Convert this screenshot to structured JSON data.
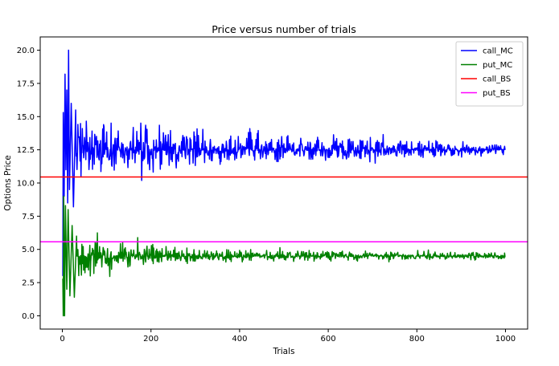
{
  "chart_data": {
    "type": "line",
    "title": "Price versus number of trials",
    "xlabel": "Trials",
    "ylabel": "Options Price",
    "xlim": [
      -50,
      1050
    ],
    "ylim": [
      -1.0,
      21.0
    ],
    "xticks": [
      0,
      200,
      400,
      600,
      800,
      1000
    ],
    "yticks": [
      0.0,
      2.5,
      5.0,
      7.5,
      10.0,
      12.5,
      15.0,
      17.5,
      20.0
    ],
    "xtick_labels": [
      "0",
      "200",
      "400",
      "600",
      "800",
      "1000"
    ],
    "ytick_labels": [
      "0.0",
      "2.5",
      "5.0",
      "7.5",
      "10.0",
      "12.5",
      "15.0",
      "17.5",
      "20.0"
    ],
    "grid": false,
    "legend_position": "top-right",
    "series": [
      {
        "name": "call_MC",
        "kind": "monte-carlo",
        "color": "#0000ff",
        "x_range": [
          1,
          1000
        ],
        "converges_to": 12.5,
        "keypoints": [
          {
            "x": 1,
            "y": 3.0
          },
          {
            "x": 2,
            "y": 15.3
          },
          {
            "x": 4,
            "y": 9.0
          },
          {
            "x": 6,
            "y": 18.2
          },
          {
            "x": 8,
            "y": 11.0
          },
          {
            "x": 10,
            "y": 17.0
          },
          {
            "x": 12,
            "y": 8.5
          },
          {
            "x": 14,
            "y": 20.0
          },
          {
            "x": 16,
            "y": 9.5
          },
          {
            "x": 20,
            "y": 16.0
          },
          {
            "x": 25,
            "y": 8.2
          },
          {
            "x": 30,
            "y": 15.5
          }
        ],
        "envelope": [
          {
            "x": 30,
            "low": 9.0,
            "high": 16.5
          },
          {
            "x": 100,
            "low": 9.6,
            "high": 16.2
          },
          {
            "x": 200,
            "low": 10.0,
            "high": 15.6
          },
          {
            "x": 300,
            "low": 10.5,
            "high": 15.0
          },
          {
            "x": 400,
            "low": 10.9,
            "high": 14.5
          },
          {
            "x": 600,
            "low": 11.2,
            "high": 14.0
          },
          {
            "x": 800,
            "low": 11.5,
            "high": 13.7
          },
          {
            "x": 1000,
            "low": 11.7,
            "high": 13.3
          }
        ]
      },
      {
        "name": "put_MC",
        "kind": "monte-carlo",
        "color": "#008000",
        "x_range": [
          1,
          1000
        ],
        "converges_to": 4.5,
        "keypoints": [
          {
            "x": 1,
            "y": 2.8
          },
          {
            "x": 2,
            "y": 0.0
          },
          {
            "x": 3,
            "y": 9.0
          },
          {
            "x": 5,
            "y": 0.0
          },
          {
            "x": 7,
            "y": 8.3
          },
          {
            "x": 10,
            "y": 2.0
          },
          {
            "x": 13,
            "y": 8.0
          },
          {
            "x": 17,
            "y": 1.5
          },
          {
            "x": 22,
            "y": 6.8
          },
          {
            "x": 27,
            "y": 1.4
          },
          {
            "x": 32,
            "y": 6.0
          }
        ],
        "envelope": [
          {
            "x": 32,
            "low": 1.8,
            "high": 6.5
          },
          {
            "x": 100,
            "low": 2.4,
            "high": 6.6
          },
          {
            "x": 200,
            "low": 3.3,
            "high": 5.9
          },
          {
            "x": 300,
            "low": 3.6,
            "high": 5.5
          },
          {
            "x": 400,
            "low": 3.8,
            "high": 5.3
          },
          {
            "x": 600,
            "low": 3.9,
            "high": 5.1
          },
          {
            "x": 800,
            "low": 4.0,
            "high": 5.0
          },
          {
            "x": 1000,
            "low": 4.1,
            "high": 4.9
          }
        ]
      },
      {
        "name": "call_BS",
        "kind": "constant",
        "color": "#ff0000",
        "value": 10.45
      },
      {
        "name": "put_BS",
        "kind": "constant",
        "color": "#ff00ff",
        "value": 5.57
      }
    ]
  }
}
